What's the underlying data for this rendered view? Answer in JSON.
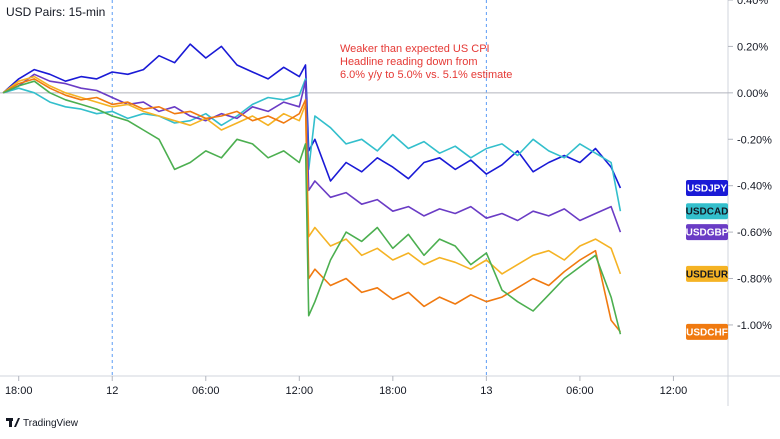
{
  "chart_data": {
    "type": "line",
    "title": "USD Pairs: 15-min",
    "annotation": [
      "Weaker than expected US CPI",
      "Headline reading down from",
      "6.0% y/y to 5.0% vs. 5.1% estimate"
    ],
    "brand": "TradingView",
    "y_tick_labels": [
      "0.40%",
      "0.20%",
      "0.00%",
      "-0.20%",
      "-0.40%",
      "-0.60%",
      "-0.80%",
      "-1.00%"
    ],
    "y_ticks": [
      0.4,
      0.2,
      0.0,
      -0.2,
      -0.4,
      -0.6,
      -0.8,
      -1.0
    ],
    "ylim": [
      -1.22,
      0.4
    ],
    "x_tick_labels": [
      "18:00",
      "12",
      "06:00",
      "12:00",
      "18:00",
      "13",
      "06:00",
      "12:00"
    ],
    "x_ticks": [
      0,
      6,
      12,
      18,
      24,
      30,
      36,
      42
    ],
    "xlim": [
      -1.2,
      45.5
    ],
    "day_separators": [
      6,
      30
    ],
    "grid": false,
    "x_unit": "hours from 18:00 on day 11",
    "series": [
      {
        "name": "USDJPY",
        "color": "#1a1ad6",
        "last_label_y": -0.41,
        "points": [
          [
            -1,
            0.0
          ],
          [
            0,
            0.06
          ],
          [
            1,
            0.1
          ],
          [
            2,
            0.08
          ],
          [
            3,
            0.05
          ],
          [
            4,
            0.07
          ],
          [
            5,
            0.06
          ],
          [
            6,
            0.09
          ],
          [
            7,
            0.08
          ],
          [
            8,
            0.1
          ],
          [
            9,
            0.16
          ],
          [
            10,
            0.13
          ],
          [
            11,
            0.21
          ],
          [
            12,
            0.15
          ],
          [
            13,
            0.2
          ],
          [
            14,
            0.12
          ],
          [
            15,
            0.09
          ],
          [
            16,
            0.06
          ],
          [
            17,
            0.11
          ],
          [
            18,
            0.07
          ],
          [
            18.4,
            0.12
          ],
          [
            18.6,
            -0.25
          ],
          [
            19,
            -0.2
          ],
          [
            20,
            -0.38
          ],
          [
            21,
            -0.3
          ],
          [
            22,
            -0.34
          ],
          [
            23,
            -0.28
          ],
          [
            24,
            -0.32
          ],
          [
            25,
            -0.37
          ],
          [
            26,
            -0.3
          ],
          [
            27,
            -0.28
          ],
          [
            28,
            -0.33
          ],
          [
            29,
            -0.29
          ],
          [
            30,
            -0.35
          ],
          [
            31,
            -0.31
          ],
          [
            32,
            -0.25
          ],
          [
            33,
            -0.34
          ],
          [
            34,
            -0.3
          ],
          [
            35,
            -0.27
          ],
          [
            36,
            -0.3
          ],
          [
            37,
            -0.24
          ],
          [
            38,
            -0.32
          ],
          [
            38.6,
            -0.41
          ]
        ]
      },
      {
        "name": "USDCAD",
        "color": "#33bfcc",
        "last_label_y": -0.51,
        "points": [
          [
            -1,
            0.0
          ],
          [
            0,
            0.02
          ],
          [
            1,
            0.0
          ],
          [
            2,
            -0.04
          ],
          [
            3,
            -0.06
          ],
          [
            4,
            -0.07
          ],
          [
            5,
            -0.09
          ],
          [
            6,
            -0.08
          ],
          [
            7,
            -0.11
          ],
          [
            8,
            -0.09
          ],
          [
            9,
            -0.1
          ],
          [
            10,
            -0.13
          ],
          [
            11,
            -0.12
          ],
          [
            12,
            -0.09
          ],
          [
            13,
            -0.14
          ],
          [
            14,
            -0.1
          ],
          [
            15,
            -0.05
          ],
          [
            16,
            -0.02
          ],
          [
            17,
            -0.03
          ],
          [
            18,
            -0.01
          ],
          [
            18.4,
            0.06
          ],
          [
            18.6,
            -0.33
          ],
          [
            19,
            -0.1
          ],
          [
            20,
            -0.15
          ],
          [
            21,
            -0.22
          ],
          [
            22,
            -0.2
          ],
          [
            23,
            -0.25
          ],
          [
            24,
            -0.18
          ],
          [
            25,
            -0.24
          ],
          [
            26,
            -0.21
          ],
          [
            27,
            -0.26
          ],
          [
            28,
            -0.23
          ],
          [
            29,
            -0.28
          ],
          [
            30,
            -0.24
          ],
          [
            31,
            -0.22
          ],
          [
            32,
            -0.27
          ],
          [
            33,
            -0.2
          ],
          [
            34,
            -0.25
          ],
          [
            35,
            -0.28
          ],
          [
            36,
            -0.22
          ],
          [
            37,
            -0.26
          ],
          [
            38,
            -0.3
          ],
          [
            38.6,
            -0.51
          ]
        ]
      },
      {
        "name": "USDGBP",
        "color": "#6a3cc5",
        "last_label_y": -0.6,
        "points": [
          [
            -1,
            0.0
          ],
          [
            0,
            0.03
          ],
          [
            1,
            0.08
          ],
          [
            2,
            0.05
          ],
          [
            3,
            0.04
          ],
          [
            4,
            0.02
          ],
          [
            5,
            0.01
          ],
          [
            6,
            -0.02
          ],
          [
            7,
            -0.05
          ],
          [
            8,
            -0.04
          ],
          [
            9,
            -0.08
          ],
          [
            10,
            -0.06
          ],
          [
            11,
            -0.1
          ],
          [
            12,
            -0.12
          ],
          [
            13,
            -0.09
          ],
          [
            14,
            -0.11
          ],
          [
            15,
            -0.06
          ],
          [
            16,
            -0.08
          ],
          [
            17,
            -0.04
          ],
          [
            18,
            -0.06
          ],
          [
            18.4,
            0.05
          ],
          [
            18.6,
            -0.42
          ],
          [
            19,
            -0.38
          ],
          [
            20,
            -0.45
          ],
          [
            21,
            -0.43
          ],
          [
            22,
            -0.48
          ],
          [
            23,
            -0.46
          ],
          [
            24,
            -0.51
          ],
          [
            25,
            -0.49
          ],
          [
            26,
            -0.53
          ],
          [
            27,
            -0.5
          ],
          [
            28,
            -0.52
          ],
          [
            29,
            -0.49
          ],
          [
            30,
            -0.54
          ],
          [
            31,
            -0.52
          ],
          [
            32,
            -0.55
          ],
          [
            33,
            -0.51
          ],
          [
            34,
            -0.53
          ],
          [
            35,
            -0.5
          ],
          [
            36,
            -0.55
          ],
          [
            37,
            -0.52
          ],
          [
            38,
            -0.49
          ],
          [
            38.6,
            -0.6
          ]
        ]
      },
      {
        "name": "USDEUR",
        "color": "#f5b324",
        "last_label_y": -0.78,
        "points": [
          [
            -1,
            0.0
          ],
          [
            0,
            0.05
          ],
          [
            1,
            0.07
          ],
          [
            2,
            0.03
          ],
          [
            3,
            0.0
          ],
          [
            4,
            -0.02
          ],
          [
            5,
            -0.04
          ],
          [
            6,
            -0.06
          ],
          [
            7,
            -0.05
          ],
          [
            8,
            -0.08
          ],
          [
            9,
            -0.1
          ],
          [
            10,
            -0.12
          ],
          [
            11,
            -0.14
          ],
          [
            12,
            -0.11
          ],
          [
            13,
            -0.16
          ],
          [
            14,
            -0.13
          ],
          [
            15,
            -0.1
          ],
          [
            16,
            -0.14
          ],
          [
            17,
            -0.09
          ],
          [
            18,
            -0.12
          ],
          [
            18.4,
            -0.05
          ],
          [
            18.6,
            -0.62
          ],
          [
            19,
            -0.58
          ],
          [
            20,
            -0.66
          ],
          [
            21,
            -0.63
          ],
          [
            22,
            -0.7
          ],
          [
            23,
            -0.67
          ],
          [
            24,
            -0.72
          ],
          [
            25,
            -0.69
          ],
          [
            26,
            -0.74
          ],
          [
            27,
            -0.71
          ],
          [
            28,
            -0.73
          ],
          [
            29,
            -0.76
          ],
          [
            30,
            -0.72
          ],
          [
            31,
            -0.78
          ],
          [
            32,
            -0.74
          ],
          [
            33,
            -0.7
          ],
          [
            34,
            -0.68
          ],
          [
            35,
            -0.72
          ],
          [
            36,
            -0.66
          ],
          [
            37,
            -0.63
          ],
          [
            38,
            -0.67
          ],
          [
            38.6,
            -0.78
          ]
        ]
      },
      {
        "name": "USDCHF",
        "color": "#f07a10",
        "last_label_y": -1.03,
        "points": [
          [
            -1,
            0.0
          ],
          [
            0,
            0.04
          ],
          [
            1,
            0.06
          ],
          [
            2,
            0.02
          ],
          [
            3,
            -0.01
          ],
          [
            4,
            -0.03
          ],
          [
            5,
            -0.02
          ],
          [
            6,
            -0.05
          ],
          [
            7,
            -0.04
          ],
          [
            8,
            -0.07
          ],
          [
            9,
            -0.06
          ],
          [
            10,
            -0.09
          ],
          [
            11,
            -0.08
          ],
          [
            12,
            -0.11
          ],
          [
            13,
            -0.1
          ],
          [
            14,
            -0.08
          ],
          [
            15,
            -0.12
          ],
          [
            16,
            -0.1
          ],
          [
            17,
            -0.13
          ],
          [
            18,
            -0.09
          ],
          [
            18.4,
            -0.03
          ],
          [
            18.6,
            -0.8
          ],
          [
            19,
            -0.76
          ],
          [
            20,
            -0.83
          ],
          [
            21,
            -0.8
          ],
          [
            22,
            -0.86
          ],
          [
            23,
            -0.84
          ],
          [
            24,
            -0.89
          ],
          [
            25,
            -0.86
          ],
          [
            26,
            -0.92
          ],
          [
            27,
            -0.88
          ],
          [
            28,
            -0.91
          ],
          [
            29,
            -0.87
          ],
          [
            30,
            -0.9
          ],
          [
            31,
            -0.88
          ],
          [
            32,
            -0.84
          ],
          [
            33,
            -0.8
          ],
          [
            34,
            -0.83
          ],
          [
            35,
            -0.77
          ],
          [
            36,
            -0.72
          ],
          [
            37,
            -0.68
          ],
          [
            38,
            -0.98
          ],
          [
            38.6,
            -1.03
          ]
        ]
      },
      {
        "name": "",
        "color": "#4caf50",
        "last_label_y": -1.04,
        "points": [
          [
            -1,
            0.0
          ],
          [
            0,
            0.03
          ],
          [
            1,
            0.05
          ],
          [
            2,
            0.0
          ],
          [
            3,
            -0.03
          ],
          [
            4,
            -0.05
          ],
          [
            5,
            -0.07
          ],
          [
            6,
            -0.1
          ],
          [
            7,
            -0.12
          ],
          [
            8,
            -0.16
          ],
          [
            9,
            -0.2
          ],
          [
            10,
            -0.33
          ],
          [
            11,
            -0.3
          ],
          [
            12,
            -0.25
          ],
          [
            13,
            -0.28
          ],
          [
            14,
            -0.2
          ],
          [
            15,
            -0.22
          ],
          [
            16,
            -0.28
          ],
          [
            17,
            -0.25
          ],
          [
            18,
            -0.3
          ],
          [
            18.4,
            -0.22
          ],
          [
            18.6,
            -0.96
          ],
          [
            19,
            -0.9
          ],
          [
            20,
            -0.72
          ],
          [
            21,
            -0.6
          ],
          [
            22,
            -0.64
          ],
          [
            23,
            -0.58
          ],
          [
            24,
            -0.67
          ],
          [
            25,
            -0.61
          ],
          [
            26,
            -0.7
          ],
          [
            27,
            -0.63
          ],
          [
            28,
            -0.66
          ],
          [
            29,
            -0.74
          ],
          [
            30,
            -0.69
          ],
          [
            31,
            -0.85
          ],
          [
            32,
            -0.9
          ],
          [
            33,
            -0.94
          ],
          [
            34,
            -0.87
          ],
          [
            35,
            -0.8
          ],
          [
            36,
            -0.75
          ],
          [
            37,
            -0.7
          ],
          [
            38,
            -0.88
          ],
          [
            38.6,
            -1.04
          ]
        ]
      }
    ]
  }
}
